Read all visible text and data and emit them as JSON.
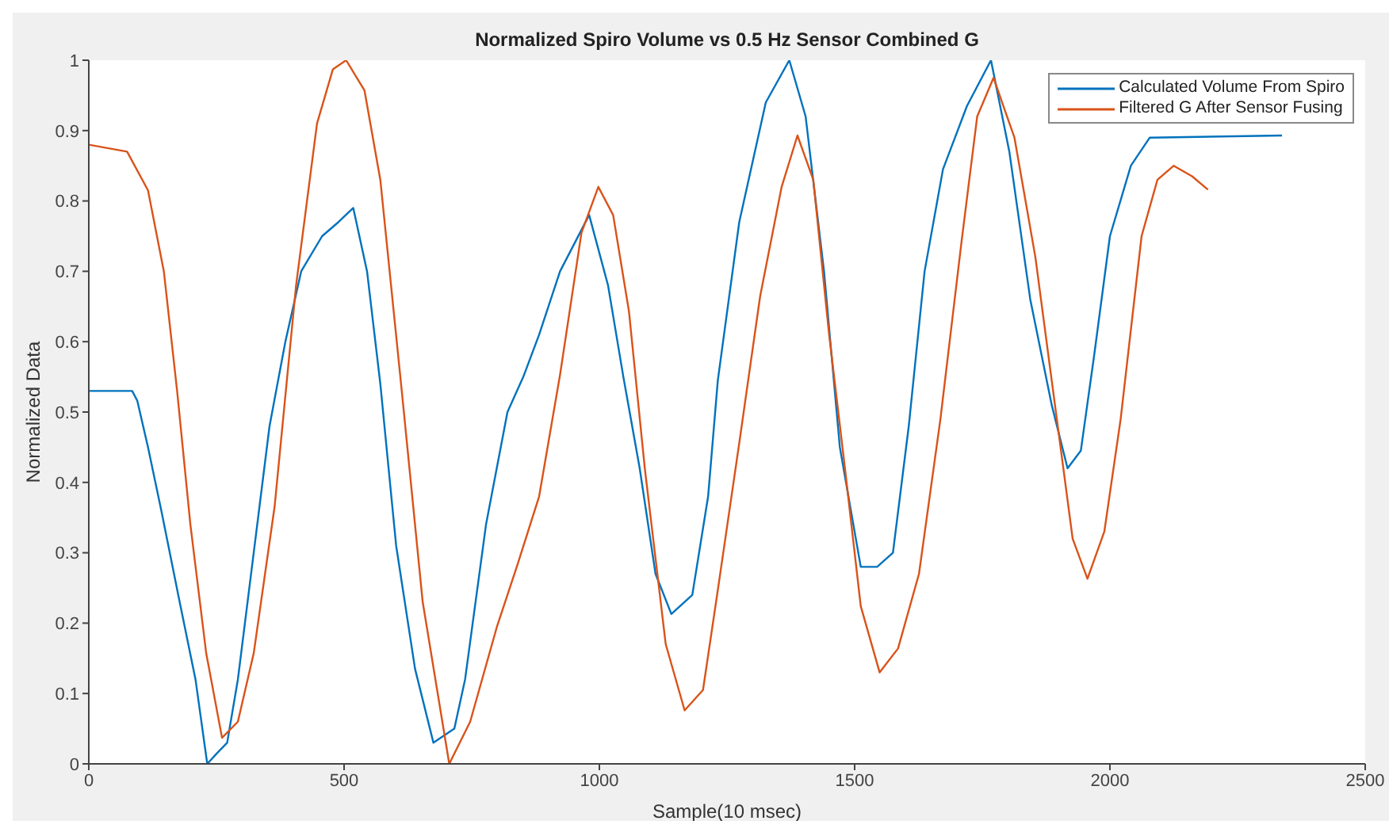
{
  "chart_data": {
    "type": "line",
    "title": "Normalized Spiro Volume vs 0.5 Hz Sensor Combined G",
    "xlabel": "Sample(10 msec)",
    "ylabel": "Normalized Data",
    "xlim": [
      0,
      2500
    ],
    "xticks": [
      0,
      500,
      1000,
      1500,
      2000,
      2500
    ],
    "ylim": [
      0,
      1
    ],
    "yticks": [
      0,
      0.1,
      0.2,
      0.3,
      0.4,
      0.5,
      0.6,
      0.7,
      0.8,
      0.9,
      1
    ],
    "grid": false,
    "legend": "top right",
    "marker": "none",
    "line_style": "solid",
    "series": [
      {
        "name": "Calculated Volume From Spiro",
        "color": "#0072bd",
        "x": [
          0,
          85,
          95,
          116,
          142,
          178,
          209,
          232,
          251,
          271,
          292,
          323,
          354,
          385,
          416,
          457,
          489,
          518,
          545,
          571,
          602,
          639,
          675,
          716,
          737,
          778,
          820,
          851,
          882,
          923,
          980,
          1017,
          1047,
          1079,
          1110,
          1141,
          1182,
          1213,
          1232,
          1274,
          1326,
          1372,
          1404,
          1440,
          1471,
          1512,
          1544,
          1575,
          1606,
          1637,
          1673,
          1720,
          1767,
          1803,
          1844,
          1886,
          1917,
          1943,
          1969,
          2000,
          2041,
          2078,
          2337
        ],
        "values": [
          0.53,
          0.53,
          0.516,
          0.45,
          0.36,
          0.23,
          0.12,
          0,
          0.015,
          0.03,
          0.12,
          0.3,
          0.48,
          0.6,
          0.7,
          0.75,
          0.77,
          0.79,
          0.7,
          0.54,
          0.31,
          0.135,
          0.03,
          0.05,
          0.12,
          0.34,
          0.5,
          0.55,
          0.61,
          0.7,
          0.78,
          0.68,
          0.55,
          0.42,
          0.27,
          0.213,
          0.24,
          0.38,
          0.545,
          0.77,
          0.94,
          1,
          0.92,
          0.7,
          0.45,
          0.28,
          0.28,
          0.3,
          0.48,
          0.7,
          0.845,
          0.935,
          1,
          0.87,
          0.66,
          0.51,
          0.42,
          0.445,
          0.58,
          0.75,
          0.85,
          0.89,
          0.893
        ]
      },
      {
        "name": "Filtered G After Sensor Fusing",
        "color": "#d95319",
        "x": [
          0,
          75,
          116,
          147,
          173,
          199,
          230,
          261,
          292,
          323,
          364,
          406,
          447,
          478,
          504,
          540,
          571,
          613,
          654,
          706,
          747,
          799,
          840,
          882,
          923,
          965,
          998,
          1027,
          1058,
          1089,
          1130,
          1167,
          1203,
          1232,
          1274,
          1315,
          1357,
          1388,
          1419,
          1450,
          1481,
          1512,
          1549,
          1585,
          1626,
          1668,
          1709,
          1740,
          1772,
          1813,
          1854,
          1896,
          1927,
          1956,
          1989,
          2021,
          2062,
          2093,
          2125,
          2161,
          2192
        ],
        "values": [
          0.88,
          0.87,
          0.815,
          0.7,
          0.53,
          0.34,
          0.157,
          0.037,
          0.06,
          0.157,
          0.366,
          0.68,
          0.91,
          0.987,
          1,
          0.957,
          0.83,
          0.53,
          0.23,
          0,
          0.06,
          0.194,
          0.284,
          0.38,
          0.553,
          0.755,
          0.82,
          0.78,
          0.643,
          0.42,
          0.17,
          0.076,
          0.105,
          0.247,
          0.456,
          0.665,
          0.82,
          0.893,
          0.83,
          0.61,
          0.42,
          0.224,
          0.13,
          0.164,
          0.27,
          0.49,
          0.74,
          0.92,
          0.975,
          0.89,
          0.72,
          0.49,
          0.32,
          0.263,
          0.33,
          0.49,
          0.75,
          0.83,
          0.85,
          0.835,
          0.816
        ]
      }
    ]
  }
}
